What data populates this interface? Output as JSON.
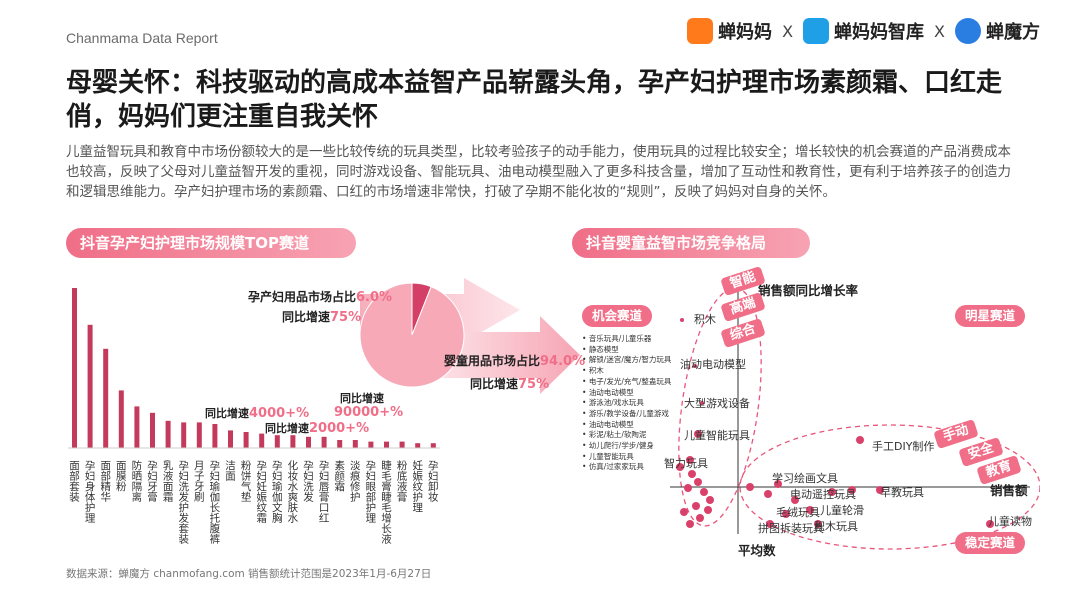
{
  "header": {
    "report_name": "Chanmama Data Report",
    "logo1": "蝉妈妈",
    "logo2": "蝉妈妈智库",
    "logo3": "蝉魔方",
    "separator": "X"
  },
  "title": "母婴关怀：科技驱动的高成本益智产品崭露头角，孕产妇护理市场素颜霜、口红走俏，妈妈们更注重自我关怀",
  "description": "儿童益智玩具和教育中市场份额较大的是一些比较传统的玩具类型，比较考验孩子的动手能力，使用玩具的过程比较安全；增长较快的机会赛道的产品消费成本也较高，反映了父母对儿童益智开发的重视，同时游戏设备、智能玩具、油电动模型融入了更多科技含量，增加了互动性和教育性，更有利于培养孩子的创造力和逻辑思维能力。孕产妇护理市场的素颜霜、口红的市场增速非常快，打破了孕期不能化妆的“规则”，反映了妈妈对自身的关怀。",
  "footer": "数据来源：蝉魔方 chanmofang.com       销售额统计范围是2023年1月-6月27日",
  "left_chart": {
    "pill": "抖音孕产妇护理市场规模TOP赛道",
    "share_label": "孕产妇用品市场占比",
    "share_value": "6.0%",
    "share_growth_label": "同比增速",
    "share_growth_value": "75%",
    "baby_label": "婴童用品市场占比",
    "baby_value": "94.0%",
    "baby_growth_label": "同比增速",
    "baby_growth_value": "75%",
    "ann1_label": "同比增速",
    "ann1_value": "4000+%",
    "ann2_label": "同比增速",
    "ann2_value": "2000+%",
    "ann3_label": "同比增速",
    "ann3_value": "90000+%"
  },
  "chart_data": [
    {
      "type": "bar",
      "title": "抖音孕产妇护理市场规模TOP赛道",
      "categories": [
        "面部套装",
        "孕妇身体护理",
        "面部精华",
        "面膜粉",
        "防晒隔离",
        "孕妇牙膏",
        "乳液面霜",
        "孕妇洗发护发套装",
        "月子牙刷",
        "孕妇瑜伽长托腹裤",
        "洁面",
        "粉饼气垫",
        "孕妇妊娠纹霜",
        "孕妇瑜伽文胸",
        "化妆水爽肤水",
        "孕妇洗发",
        "孕妇唇膏口红",
        "素颜霜",
        "淡痕修护",
        "孕妇眼部护理",
        "睫毛膏睫毛增长液",
        "粉底液膏",
        "妊娠纹护理",
        "孕妇卸妆"
      ],
      "values": [
        100,
        77,
        62,
        36,
        26,
        22,
        17,
        16,
        16,
        15,
        11,
        10,
        9,
        8,
        8,
        7,
        7,
        5,
        5,
        4,
        4,
        4,
        3,
        3
      ],
      "ylabel": "",
      "grid": false
    },
    {
      "type": "pie",
      "slices": [
        {
          "label": "孕产妇用品市场占比",
          "value": 6.0
        },
        {
          "label": "婴童用品市场占比",
          "value": 94.0
        }
      ]
    },
    {
      "type": "scatter",
      "title": "抖音婴童益智市场竞争格局",
      "xlabel": "销售额",
      "ylabel": "销售额同比增长率",
      "x_ref_label": "平均数",
      "quadrants": {
        "top_left": "机会赛道",
        "top_right": "明星赛道",
        "bottom_right": "稳定赛道"
      },
      "opportunity_list": [
        "音乐玩具/儿童乐器",
        "静态模型",
        "解锁/迷宫/魔方/智力玩具",
        "积木",
        "电子/发光/充气/整蛊玩具",
        "油动电动模型",
        "游泳池/戏水玩具",
        "游乐/教学设备/儿童游戏",
        "油动电动模型",
        "彩泥/粘土/软陶泥",
        "幼儿爬行/学步/健身",
        "儿童智能玩具",
        "仿真/过家家玩具"
      ],
      "labels": [
        "积木",
        "油动电动模型",
        "大型游戏设备",
        "儿童智能玩具",
        "智力玩具",
        "手工DIY制作",
        "学习绘画文具",
        "电动遥控玩具",
        "早教玩具",
        "毛绒玩具",
        "儿童轮滑",
        "拼图拆装玩具",
        "积木玩具",
        "儿童读物"
      ],
      "tags_top": [
        "智能",
        "高端",
        "综合"
      ],
      "tags_right": [
        "手动",
        "安全",
        "教育"
      ]
    }
  ]
}
